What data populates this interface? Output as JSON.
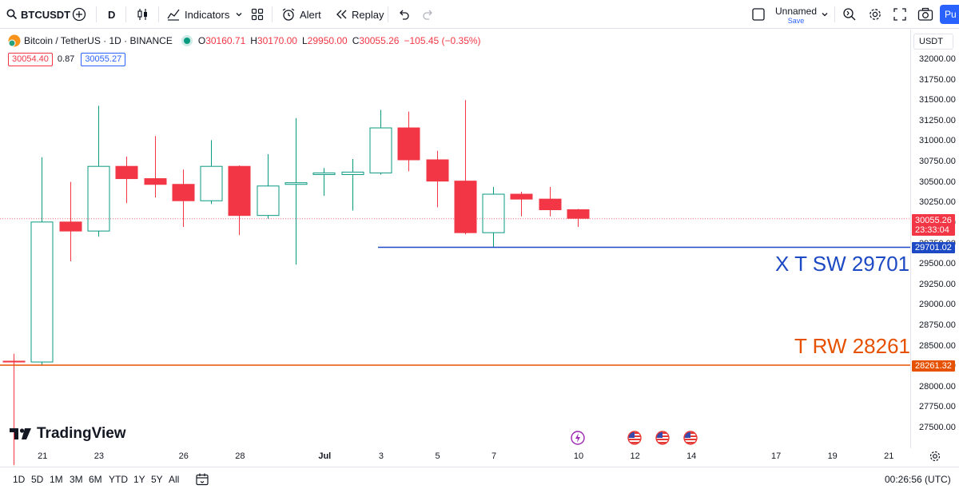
{
  "toolbar": {
    "symbol": "BTCUSDT",
    "interval": "D",
    "indicators_label": "Indicators",
    "alert_label": "Alert",
    "replay_label": "Replay",
    "layout_name": "Unnamed",
    "layout_save": "Save",
    "publish_label": "Pu"
  },
  "legend": {
    "title": "Bitcoin / TetherUS · 1D · BINANCE",
    "open_label": "O",
    "open": "30160.71",
    "high_label": "H",
    "high": "30170.00",
    "low_label": "L",
    "low": "29950.00",
    "close_label": "C",
    "close": "30055.26",
    "change": "−105.45 (−0.35%)",
    "bid": "30054.40",
    "spread": "0.87",
    "ask": "30055.27"
  },
  "currency": "USDT",
  "price_scale": {
    "labels": [
      "32000.00",
      "31750.00",
      "31500.00",
      "31250.00",
      "31000.00",
      "30750.00",
      "30500.00",
      "30250.00",
      "30000.00",
      "29750.00",
      "29500.00",
      "29250.00",
      "29000.00",
      "28750.00",
      "28500.00",
      "28250.00",
      "28000.00",
      "27750.00",
      "27500.00"
    ],
    "last_price": "30055.26",
    "countdown": "23:33:04",
    "line1_value": "29701.02",
    "line2_value": "28261.32"
  },
  "annotations": {
    "line1_text": "X T SW 29701",
    "line2_text": "T RW 28261"
  },
  "colors": {
    "up": "#089981",
    "down": "#f23645",
    "line1": "#1d49c4",
    "line2": "#e65100",
    "last": "#f23645"
  },
  "logo_text": "TradingView",
  "time_axis": {
    "labels": [
      {
        "text": "21",
        "day": 0
      },
      {
        "text": "23",
        "day": 2
      },
      {
        "text": "26",
        "day": 5
      },
      {
        "text": "28",
        "day": 7
      },
      {
        "text": "Jul",
        "day": 10,
        "bold": true
      },
      {
        "text": "3",
        "day": 12
      },
      {
        "text": "5",
        "day": 14
      },
      {
        "text": "7",
        "day": 16
      },
      {
        "text": "10",
        "day": 19
      },
      {
        "text": "12",
        "day": 21
      },
      {
        "text": "14",
        "day": 23
      },
      {
        "text": "17",
        "day": 26
      },
      {
        "text": "19",
        "day": 28
      },
      {
        "text": "21",
        "day": 30
      }
    ]
  },
  "events": [
    {
      "icon": "lightning-icon",
      "day": 19
    },
    {
      "icon": "us-flag-icon",
      "day": 21
    },
    {
      "icon": "us-flag-icon",
      "day": 22
    },
    {
      "icon": "us-flag-icon",
      "day": 23
    }
  ],
  "ranges": [
    "1D",
    "5D",
    "1M",
    "3M",
    "6M",
    "YTD",
    "1Y",
    "5Y",
    "All"
  ],
  "clock": "00:26:56 (UTC)",
  "chart_data": {
    "type": "candlestick",
    "x": [
      "Jun 20",
      "Jun 21",
      "Jun 22",
      "Jun 23",
      "Jun 24",
      "Jun 25",
      "Jun 26",
      "Jun 27",
      "Jun 28",
      "Jun 29",
      "Jun 30",
      "Jul 1",
      "Jul 2",
      "Jul 3",
      "Jul 4",
      "Jul 5",
      "Jul 6",
      "Jul 7",
      "Jul 8",
      "Jul 9",
      "Jul 10"
    ],
    "series": [
      {
        "open": [
          28310,
          28300,
          30010,
          29900,
          30690,
          30540,
          30470,
          30270,
          30690,
          30090,
          30470,
          30590,
          30590,
          30610,
          31160,
          30770,
          30510,
          29880,
          30350,
          30290,
          30160.71
        ],
        "high": [
          28400,
          30800,
          30500,
          31430,
          30810,
          31060,
          30650,
          31010,
          30700,
          30840,
          31280,
          30670,
          30780,
          31380,
          31360,
          30880,
          31500,
          30440,
          30380,
          30440,
          30170
        ],
        "low": [
          27040,
          28260,
          29530,
          29830,
          30240,
          30310,
          29950,
          30230,
          29850,
          30050,
          29490,
          30330,
          30150,
          30590,
          30630,
          30190,
          29860,
          29700,
          30080,
          30080,
          29950
        ],
        "close": [
          28300,
          30010,
          29900,
          30690,
          30540,
          30470,
          30270,
          30690,
          30090,
          30450,
          30490,
          30610,
          30620,
          31160,
          30770,
          30510,
          29880,
          30350,
          30290,
          30160,
          30055.26
        ]
      }
    ],
    "ylim": [
      27400,
      32100
    ],
    "horizontal_lines": [
      {
        "value": 29701.02,
        "start": "Jul 3",
        "label": "X T SW 29701"
      },
      {
        "value": 28261.32,
        "label": "T RW 28261"
      }
    ],
    "last_price": 30055.26
  }
}
